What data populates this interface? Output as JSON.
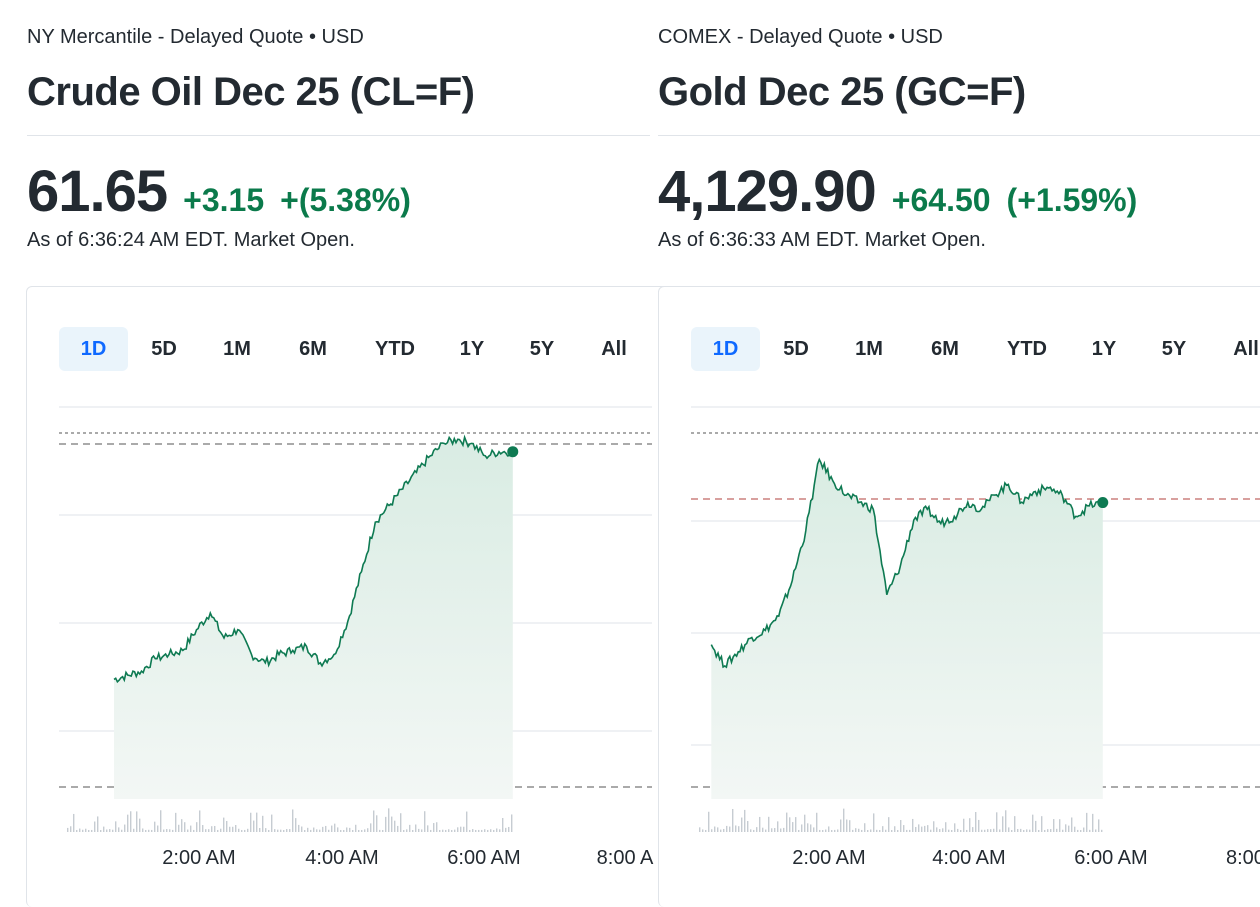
{
  "colors": {
    "up": "#0b7a4b",
    "line": "#0e7a52",
    "fill_top": "#d9ece3",
    "grid": "#dfe3e8",
    "active_tab_bg": "#eaf4fb",
    "active_tab_text": "#0f69ff"
  },
  "quotes": [
    {
      "exchange": "NY Mercantile - Delayed Quote • USD",
      "title": "Crude Oil Dec 25 (CL=F)",
      "price": "61.65",
      "change": "+3.15",
      "change_pct": "+(5.38%)",
      "as_of": "As of 6:36:24 AM EDT. Market Open.",
      "tabs": [
        "1D",
        "5D",
        "1M",
        "6M",
        "YTD",
        "1Y",
        "5Y",
        "All"
      ],
      "active_tab": "1D",
      "x_ticks": [
        "2:00 AM",
        "4:00 AM",
        "6:00 AM",
        "8:00 A"
      ]
    },
    {
      "exchange": "COMEX - Delayed Quote • USD",
      "title": "Gold Dec 25 (GC=F)",
      "price": "4,129.90",
      "change": "+64.50",
      "change_pct": "(+1.59%)",
      "as_of": "As of 6:36:33 AM EDT. Market Open.",
      "tabs": [
        "1D",
        "5D",
        "1M",
        "6M",
        "YTD",
        "1Y",
        "5Y",
        "All"
      ],
      "active_tab": "1D",
      "x_ticks": [
        "2:00 AM",
        "4:00 AM",
        "6:00 AM",
        "8:00 ."
      ]
    }
  ],
  "chart_data": [
    {
      "type": "line",
      "title": "",
      "x_ticks": [
        "2:00 AM",
        "4:00 AM",
        "6:00 AM",
        "8:00 A"
      ],
      "x_hours": [
        0.8,
        1.0,
        1.2,
        1.4,
        1.6,
        1.8,
        2.0,
        2.2,
        2.4,
        2.6,
        2.8,
        3.0,
        3.2,
        3.4,
        3.6,
        3.8,
        4.0,
        4.2,
        4.4,
        4.6,
        4.8,
        5.0,
        5.2,
        5.4,
        5.6,
        5.8,
        6.0,
        6.2,
        6.4,
        6.6
      ],
      "y_values": [
        58.9,
        58.95,
        59.0,
        59.15,
        59.2,
        59.25,
        59.5,
        59.7,
        59.4,
        59.5,
        59.2,
        59.1,
        59.2,
        59.25,
        59.3,
        59.1,
        59.2,
        59.6,
        60.2,
        60.8,
        61.0,
        61.2,
        61.4,
        61.6,
        61.75,
        61.8,
        61.75,
        61.6,
        61.65,
        61.65
      ],
      "last_value": 61.65,
      "grid": true,
      "volume": true
    },
    {
      "type": "line",
      "title": "",
      "x_ticks": [
        "2:00 AM",
        "4:00 AM",
        "6:00 AM",
        "8:00 ."
      ],
      "x_hours": [
        0.3,
        0.5,
        0.7,
        0.9,
        1.1,
        1.3,
        1.5,
        1.7,
        1.9,
        2.1,
        2.3,
        2.5,
        2.7,
        2.9,
        3.1,
        3.3,
        3.5,
        3.7,
        3.9,
        4.1,
        4.3,
        4.5,
        4.7,
        4.9,
        5.1,
        5.3,
        5.5,
        5.7,
        5.9,
        6.1
      ],
      "y_values": [
        4090,
        4084,
        4088,
        4092,
        4094,
        4098,
        4108,
        4122,
        4142,
        4136,
        4132,
        4130,
        4128,
        4104,
        4112,
        4125,
        4128,
        4124,
        4126,
        4130,
        4128,
        4132,
        4135,
        4130,
        4133,
        4134,
        4132,
        4126,
        4129,
        4129.9
      ],
      "last_value": 4129.9,
      "grid": true,
      "volume": true
    }
  ]
}
